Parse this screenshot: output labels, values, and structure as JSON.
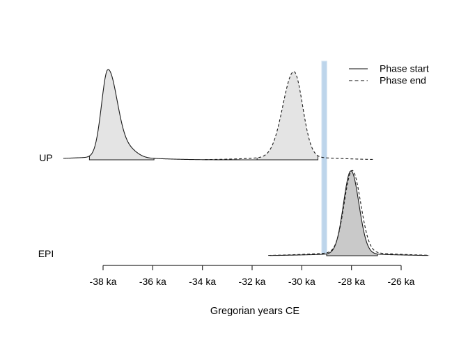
{
  "chart_data": {
    "type": "density",
    "title": "",
    "xlabel": "Gregorian years CE",
    "axis": {
      "range_ka": [
        -38,
        -26
      ],
      "ticks": [
        {
          "value": -38,
          "label": "-38 ka"
        },
        {
          "value": -36,
          "label": "-36 ka"
        },
        {
          "value": -34,
          "label": "-34 ka"
        },
        {
          "value": -32,
          "label": "-32 ka"
        },
        {
          "value": -30,
          "label": "-30 ka"
        },
        {
          "value": -28,
          "label": "-28 ka"
        },
        {
          "value": -26,
          "label": "-26 ka"
        }
      ]
    },
    "legend": [
      {
        "label": "Phase start",
        "line": "solid"
      },
      {
        "label": "Phase end",
        "line": "dashed"
      }
    ],
    "highlight_band": {
      "from_ka": -29.2,
      "to_ka": -28.99,
      "color": "#bdd5eb",
      "edge_color": "#d9e6f3"
    },
    "rows": [
      {
        "label": "UP",
        "curves": [
          {
            "phase": "start",
            "line": "solid",
            "peak_ka": -37.8,
            "sd_left": 0.26,
            "sd_right": 0.38,
            "shoulder": {
              "at_ka": -36.9,
              "sd": 0.32,
              "h": 0.07
            },
            "rel_height": 1.0,
            "draw_from_ka": -39.6,
            "draw_to_ka": -31.0,
            "fill_color": "#e4e4e4",
            "hpd_ka": [
              -38.55,
              -35.95
            ]
          },
          {
            "phase": "end",
            "line": "dashed",
            "peak_ka": -30.32,
            "sd_left": 0.44,
            "sd_right": 0.35,
            "rel_height": 0.977,
            "draw_from_ka": -33.9,
            "draw_to_ka": -27.1,
            "fill_color": "#e4e4e4",
            "hpd_ka": [
              -31.8,
              -29.35
            ]
          }
        ]
      },
      {
        "label": "EPI",
        "curves": [
          {
            "phase": "start",
            "line": "solid",
            "peak_ka": -28.02,
            "sd_left": 0.3,
            "sd_right": 0.32,
            "rel_height": 0.94,
            "draw_from_ka": -31.3,
            "draw_to_ka": -24.9,
            "fill_color": "#c9c9c9",
            "hpd_ka": [
              -29.0,
              -26.95
            ],
            "tail_w": 0.02
          },
          {
            "phase": "end",
            "line": "dashed",
            "peak_ka": -27.97,
            "sd_left": 0.32,
            "sd_right": 0.34,
            "rel_height": 0.945,
            "draw_from_ka": -31.35,
            "draw_to_ka": -24.85,
            "fill_color": "none",
            "tail_w": 0.035
          }
        ]
      }
    ],
    "colors": {
      "curve": "#1a1a1a",
      "axis": "#2e2e2e",
      "legend_line": "#3c3c3c"
    }
  }
}
